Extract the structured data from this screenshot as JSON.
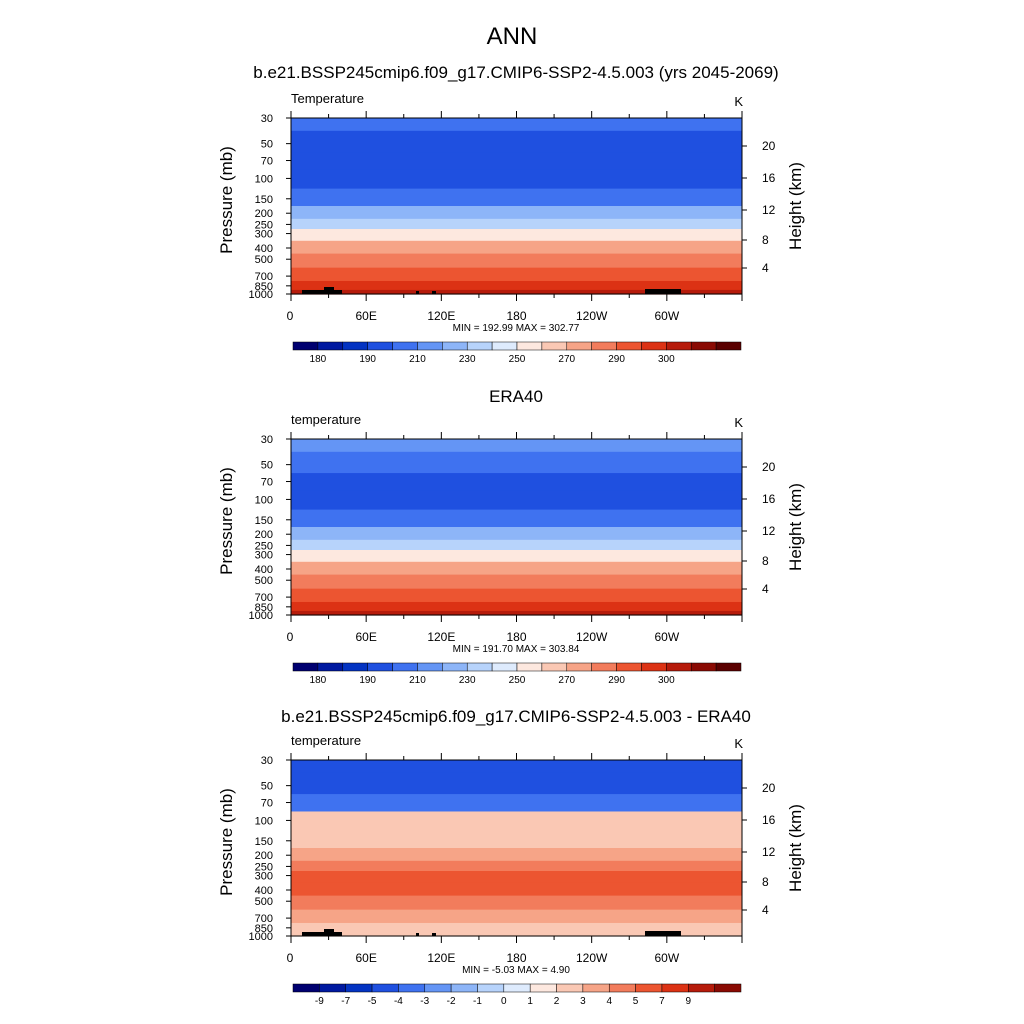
{
  "main_title": "ANN",
  "colors": {
    "temp_scale": [
      "#000070",
      "#0019a0",
      "#0333c2",
      "#1f50e0",
      "#3f72f0",
      "#6495f5",
      "#8db5f8",
      "#b7d3fb",
      "#deebfd",
      "#fde8df",
      "#fac8b4",
      "#f6a487",
      "#f27c5c",
      "#ec5531",
      "#dc3214",
      "#b61b0b",
      "#8a0a03",
      "#5a0000"
    ],
    "diff_scale": [
      "#000070",
      "#0019a0",
      "#0333c2",
      "#1f50e0",
      "#3f72f0",
      "#6495f5",
      "#8db5f8",
      "#b7d3fb",
      "#deebfd",
      "#fde8df",
      "#fac8b4",
      "#f6a487",
      "#f27c5c",
      "#ec5531",
      "#dc3214",
      "#b61b0b",
      "#8a0a03"
    ],
    "topography": "#000000"
  },
  "chart_data": [
    {
      "type": "heatmap",
      "title": "b.e21.BSSP245cmip6.f09_g17.CMIP6-SSP2-4.5.003 (yrs 2045-2069)",
      "variable_label": "Temperature",
      "units": "K",
      "ylabel": "Pressure (mb)",
      "ylabel_right": "Height (km)",
      "x_ticks": [
        "0",
        "60E",
        "120E",
        "180",
        "120W",
        "60W"
      ],
      "y_ticks": [
        "30",
        "50",
        "70",
        "100",
        "150",
        "200",
        "250",
        "300",
        "400",
        "500",
        "700",
        "850",
        "1000"
      ],
      "y_ticks_right": [
        "20",
        "16",
        "12",
        "8",
        "4"
      ],
      "stats": "MIN = 192.99  MAX = 302.77",
      "colorbar_labels": [
        "180",
        "190",
        "210",
        "230",
        "250",
        "270",
        "290",
        "300"
      ],
      "profile": [
        {
          "p": 30,
          "k": 4
        },
        {
          "p": 50,
          "k": 3
        },
        {
          "p": 70,
          "k": 3
        },
        {
          "p": 100,
          "k": 3
        },
        {
          "p": 150,
          "k": 4
        },
        {
          "p": 200,
          "k": 6
        },
        {
          "p": 250,
          "k": 7
        },
        {
          "p": 300,
          "k": 9
        },
        {
          "p": 400,
          "k": 11
        },
        {
          "p": 500,
          "k": 12
        },
        {
          "p": 700,
          "k": 13
        },
        {
          "p": 850,
          "k": 14
        },
        {
          "p": 1000,
          "k": 15
        }
      ]
    },
    {
      "type": "heatmap",
      "title": "ERA40",
      "variable_label": "temperature",
      "units": "K",
      "ylabel": "Pressure (mb)",
      "ylabel_right": "Height (km)",
      "x_ticks": [
        "0",
        "60E",
        "120E",
        "180",
        "120W",
        "60W"
      ],
      "y_ticks": [
        "30",
        "50",
        "70",
        "100",
        "150",
        "200",
        "250",
        "300",
        "400",
        "500",
        "700",
        "850",
        "1000"
      ],
      "y_ticks_right": [
        "20",
        "16",
        "12",
        "8",
        "4"
      ],
      "stats": "MIN = 191.70  MAX = 303.84",
      "colorbar_labels": [
        "180",
        "190",
        "210",
        "230",
        "250",
        "270",
        "290",
        "300"
      ],
      "profile": [
        {
          "p": 30,
          "k": 5
        },
        {
          "p": 50,
          "k": 4
        },
        {
          "p": 70,
          "k": 3
        },
        {
          "p": 100,
          "k": 3
        },
        {
          "p": 150,
          "k": 4
        },
        {
          "p": 200,
          "k": 6
        },
        {
          "p": 250,
          "k": 7
        },
        {
          "p": 300,
          "k": 9
        },
        {
          "p": 400,
          "k": 11
        },
        {
          "p": 500,
          "k": 12
        },
        {
          "p": 700,
          "k": 13
        },
        {
          "p": 850,
          "k": 14
        },
        {
          "p": 1000,
          "k": 15
        }
      ]
    },
    {
      "type": "heatmap",
      "title": "b.e21.BSSP245cmip6.f09_g17.CMIP6-SSP2-4.5.003 - ERA40",
      "variable_label": "temperature",
      "units": "K",
      "ylabel": "Pressure (mb)",
      "ylabel_right": "Height (km)",
      "x_ticks": [
        "0",
        "60E",
        "120E",
        "180",
        "120W",
        "60W"
      ],
      "y_ticks": [
        "30",
        "50",
        "70",
        "100",
        "150",
        "200",
        "250",
        "300",
        "400",
        "500",
        "700",
        "850",
        "1000"
      ],
      "y_ticks_right": [
        "20",
        "16",
        "12",
        "8",
        "4"
      ],
      "stats": "MIN = -5.03  MAX =  4.90",
      "colorbar_labels": [
        "-9",
        "-7",
        "-5",
        "-4",
        "-3",
        "-2",
        "-1",
        "0",
        "1",
        "2",
        "3",
        "4",
        "5",
        "7",
        "9"
      ],
      "profile": [
        {
          "p": 30,
          "k": 3
        },
        {
          "p": 50,
          "k": 3
        },
        {
          "p": 70,
          "k": 4
        },
        {
          "p": 100,
          "k": 10
        },
        {
          "p": 150,
          "k": 10
        },
        {
          "p": 200,
          "k": 11
        },
        {
          "p": 250,
          "k": 12
        },
        {
          "p": 300,
          "k": 13
        },
        {
          "p": 400,
          "k": 13
        },
        {
          "p": 500,
          "k": 12
        },
        {
          "p": 700,
          "k": 11
        },
        {
          "p": 850,
          "k": 10
        },
        {
          "p": 1000,
          "k": 10
        }
      ]
    }
  ]
}
